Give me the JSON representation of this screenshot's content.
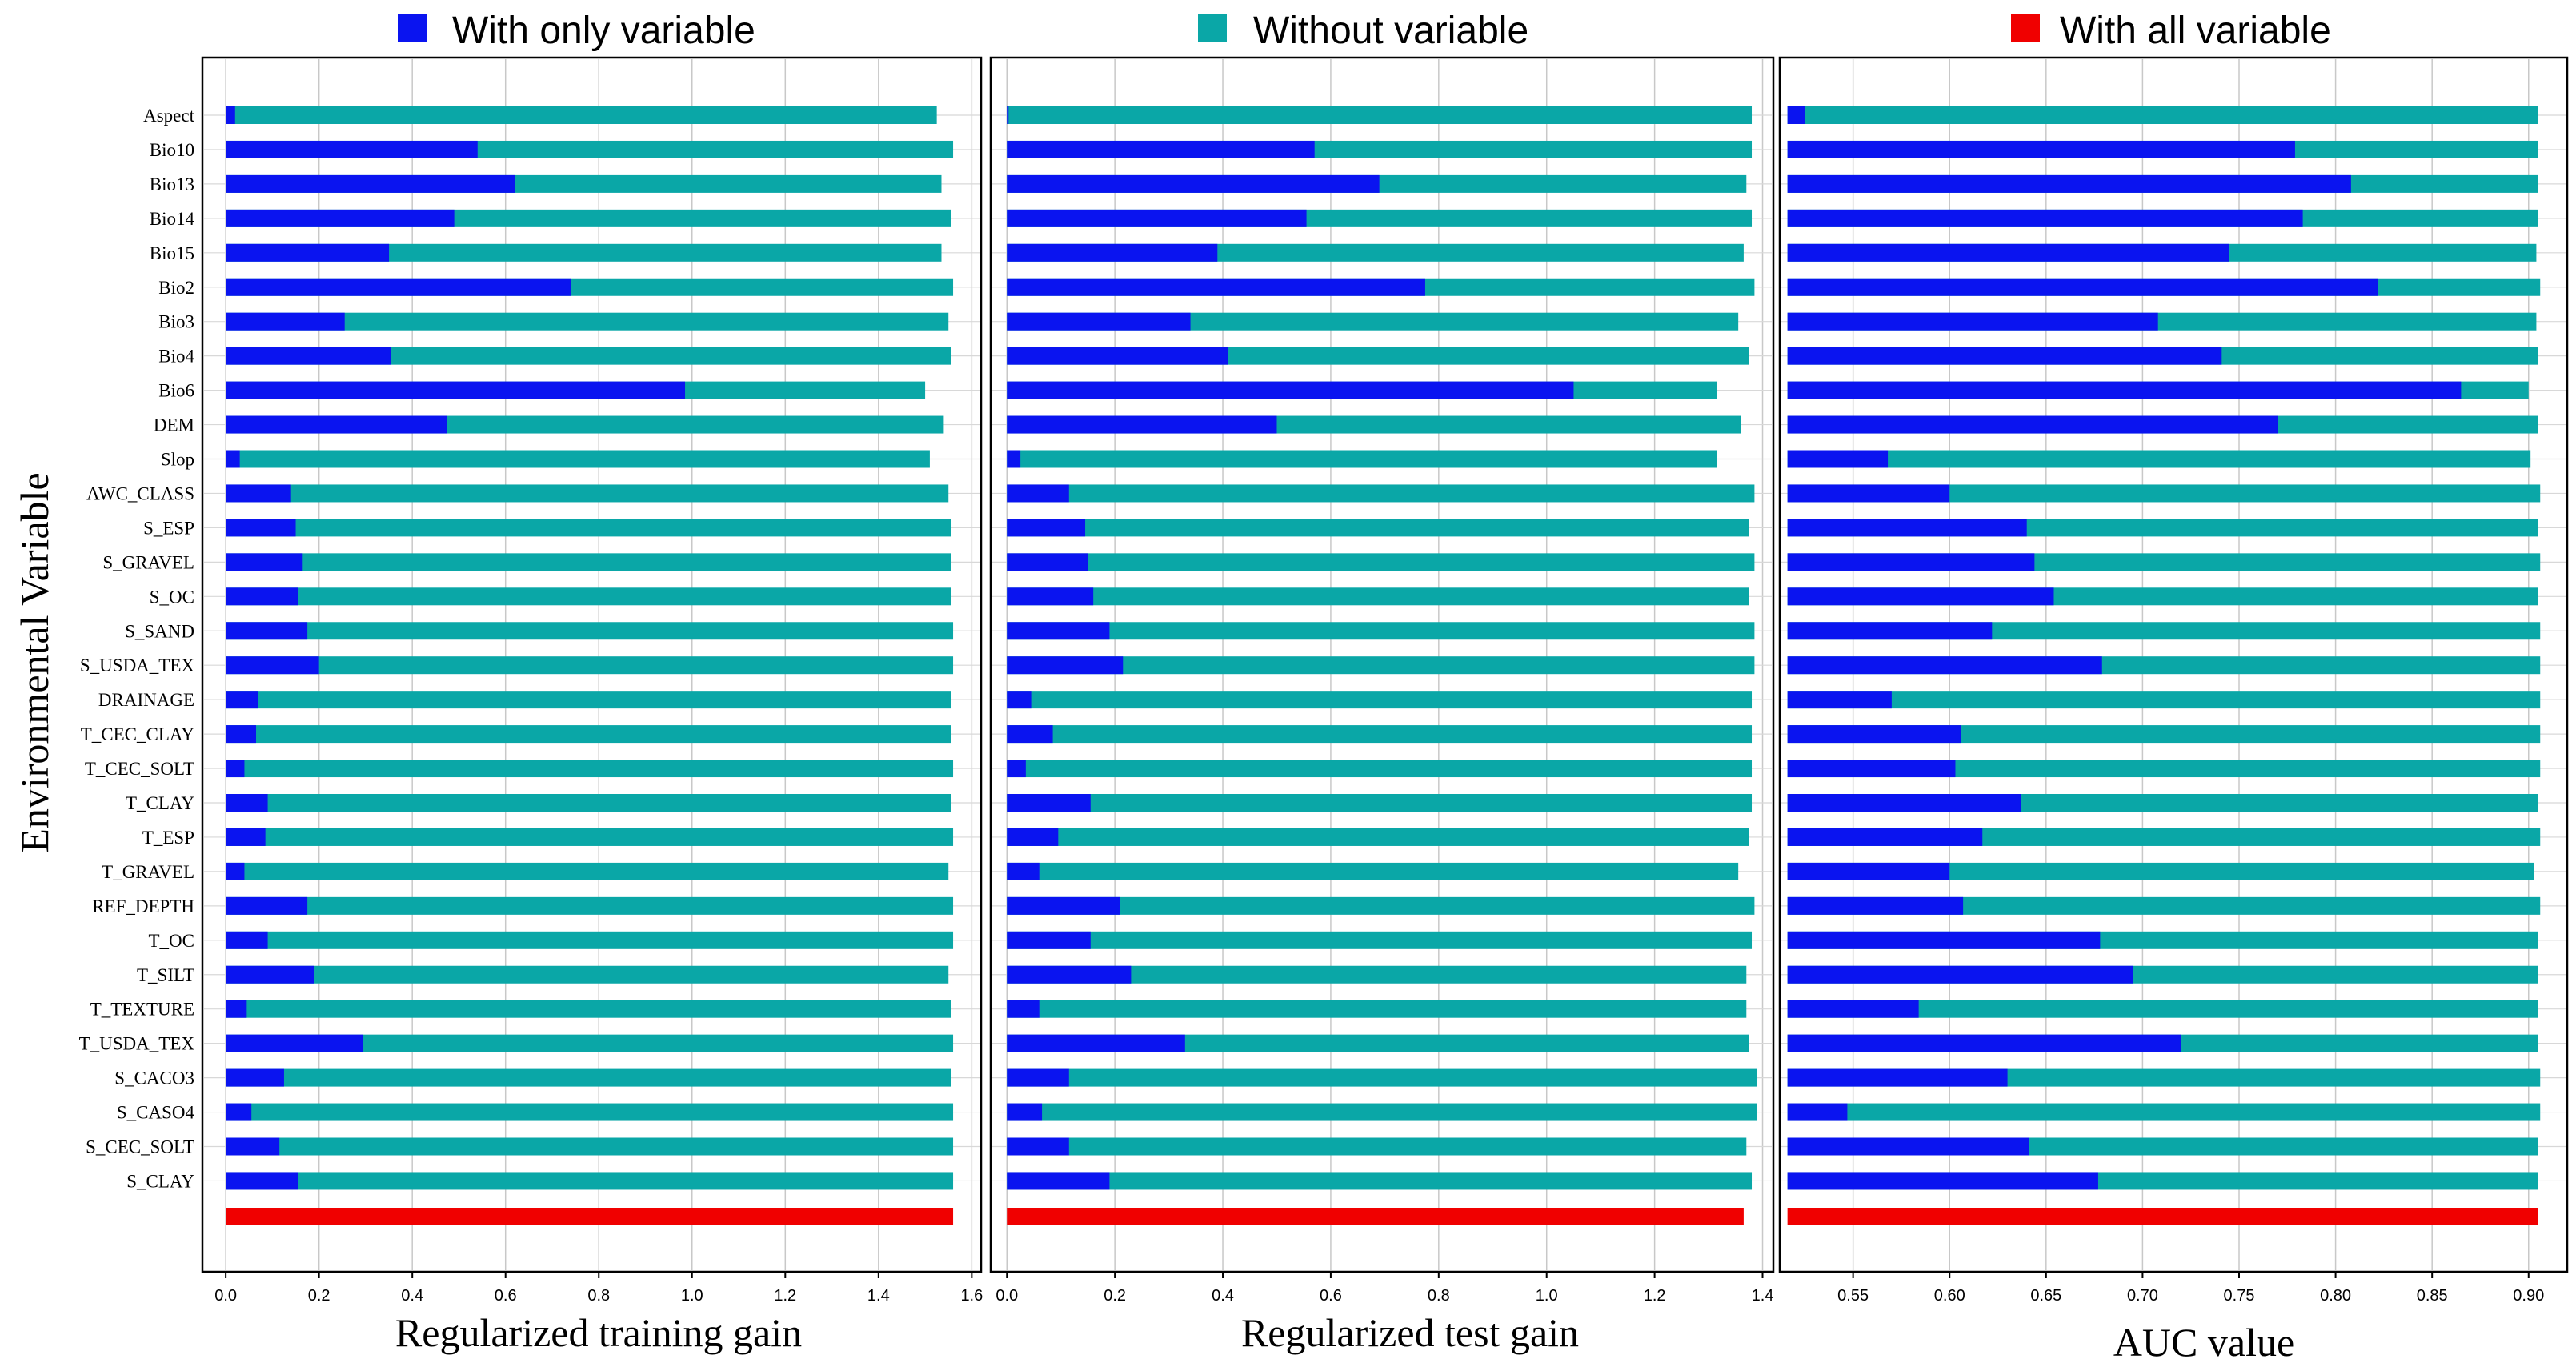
{
  "colors": {
    "only": "#0a14f0",
    "without": "#0aa7a7",
    "all": "#f00000"
  },
  "legend": [
    {
      "label": "With only variable",
      "color_key": "only"
    },
    {
      "label": "Without variable",
      "color_key": "without"
    },
    {
      "label": "With all variable",
      "color_key": "all"
    }
  ],
  "chart_data": {
    "type": "bar",
    "ylabel": "Environmental Variable",
    "categories": [
      "Aspect",
      "Bio10",
      "Bio13",
      "Bio14",
      "Bio15",
      "Bio2",
      "Bio3",
      "Bio4",
      "Bio6",
      "DEM",
      "Slop",
      "AWC_CLASS",
      "S_ESP",
      "S_GRAVEL",
      "S_OC",
      "S_SAND",
      "S_USDA_TEX",
      "DRAINAGE",
      "T_CEC_CLAY",
      "T_CEC_SOLT",
      "T_CLAY",
      "T_ESP",
      "T_GRAVEL",
      "REF_DEPTH",
      "T_OC",
      "T_SILT",
      "T_TEXTURE",
      "T_USDA_TEX",
      "S_CACO3",
      "S_CASO4",
      "S_CEC_SOLT",
      "S_CLAY"
    ],
    "panels": [
      {
        "xlabel": "Regularized training gain",
        "xlim": [
          -0.05,
          1.62
        ],
        "ticks": [
          "0.0",
          "0.2",
          "0.4",
          "0.6",
          "0.8",
          "1.0",
          "1.2",
          "1.4",
          "1.6"
        ],
        "base": 0.0,
        "series": [
          {
            "name": "Without variable",
            "values": [
              1.525,
              1.56,
              1.535,
              1.555,
              1.535,
              1.56,
              1.55,
              1.555,
              1.5,
              1.54,
              1.51,
              1.55,
              1.555,
              1.555,
              1.555,
              1.56,
              1.56,
              1.555,
              1.555,
              1.56,
              1.555,
              1.56,
              1.55,
              1.56,
              1.56,
              1.55,
              1.555,
              1.56,
              1.555,
              1.56,
              1.56,
              1.56
            ]
          },
          {
            "name": "With only variable",
            "values": [
              0.02,
              0.54,
              0.62,
              0.49,
              0.35,
              0.74,
              0.255,
              0.355,
              0.985,
              0.475,
              0.03,
              0.14,
              0.15,
              0.165,
              0.155,
              0.175,
              0.2,
              0.07,
              0.065,
              0.04,
              0.09,
              0.085,
              0.04,
              0.175,
              0.09,
              0.19,
              0.045,
              0.295,
              0.125,
              0.055,
              0.115,
              0.155
            ]
          },
          {
            "name": "With all variable",
            "values": [
              1.56
            ]
          }
        ]
      },
      {
        "xlabel": "Regularized test gain",
        "xlim": [
          -0.03,
          1.42
        ],
        "ticks": [
          "0.0",
          "0.2",
          "0.4",
          "0.6",
          "0.8",
          "1.0",
          "1.2",
          "1.4"
        ],
        "base": 0.0,
        "series": [
          {
            "name": "Without variable",
            "values": [
              1.38,
              1.38,
              1.37,
              1.38,
              1.365,
              1.385,
              1.355,
              1.375,
              1.315,
              1.36,
              1.315,
              1.385,
              1.375,
              1.385,
              1.375,
              1.385,
              1.385,
              1.38,
              1.38,
              1.38,
              1.38,
              1.375,
              1.355,
              1.385,
              1.38,
              1.37,
              1.37,
              1.375,
              1.39,
              1.39,
              1.37,
              1.38
            ]
          },
          {
            "name": "With only variable",
            "values": [
              0.003,
              0.57,
              0.69,
              0.555,
              0.39,
              0.775,
              0.34,
              0.41,
              1.05,
              0.5,
              0.025,
              0.115,
              0.145,
              0.15,
              0.16,
              0.19,
              0.215,
              0.045,
              0.085,
              0.035,
              0.155,
              0.095,
              0.06,
              0.21,
              0.155,
              0.23,
              0.06,
              0.33,
              0.115,
              0.065,
              0.115,
              0.19
            ]
          },
          {
            "name": "With all variable",
            "values": [
              1.365
            ]
          }
        ]
      },
      {
        "xlabel": "AUC value",
        "xlim": [
          0.512,
          0.92
        ],
        "ticks": [
          "0.55",
          "0.60",
          "0.65",
          "0.70",
          "0.75",
          "0.80",
          "0.85",
          "0.90"
        ],
        "base": 0.516,
        "series": [
          {
            "name": "Without variable",
            "values": [
              0.905,
              0.905,
              0.905,
              0.905,
              0.904,
              0.906,
              0.904,
              0.905,
              0.9,
              0.905,
              0.901,
              0.906,
              0.905,
              0.906,
              0.905,
              0.906,
              0.906,
              0.906,
              0.906,
              0.906,
              0.905,
              0.906,
              0.903,
              0.906,
              0.905,
              0.905,
              0.905,
              0.905,
              0.906,
              0.906,
              0.905,
              0.905
            ]
          },
          {
            "name": "With only variable",
            "values": [
              0.525,
              0.779,
              0.808,
              0.783,
              0.745,
              0.822,
              0.708,
              0.741,
              0.865,
              0.77,
              0.568,
              0.6,
              0.64,
              0.644,
              0.654,
              0.622,
              0.679,
              0.57,
              0.606,
              0.603,
              0.637,
              0.617,
              0.6,
              0.607,
              0.678,
              0.695,
              0.584,
              0.72,
              0.63,
              0.547,
              0.641,
              0.677
            ]
          },
          {
            "name": "With all variable",
            "values": [
              0.905
            ]
          }
        ]
      }
    ]
  }
}
